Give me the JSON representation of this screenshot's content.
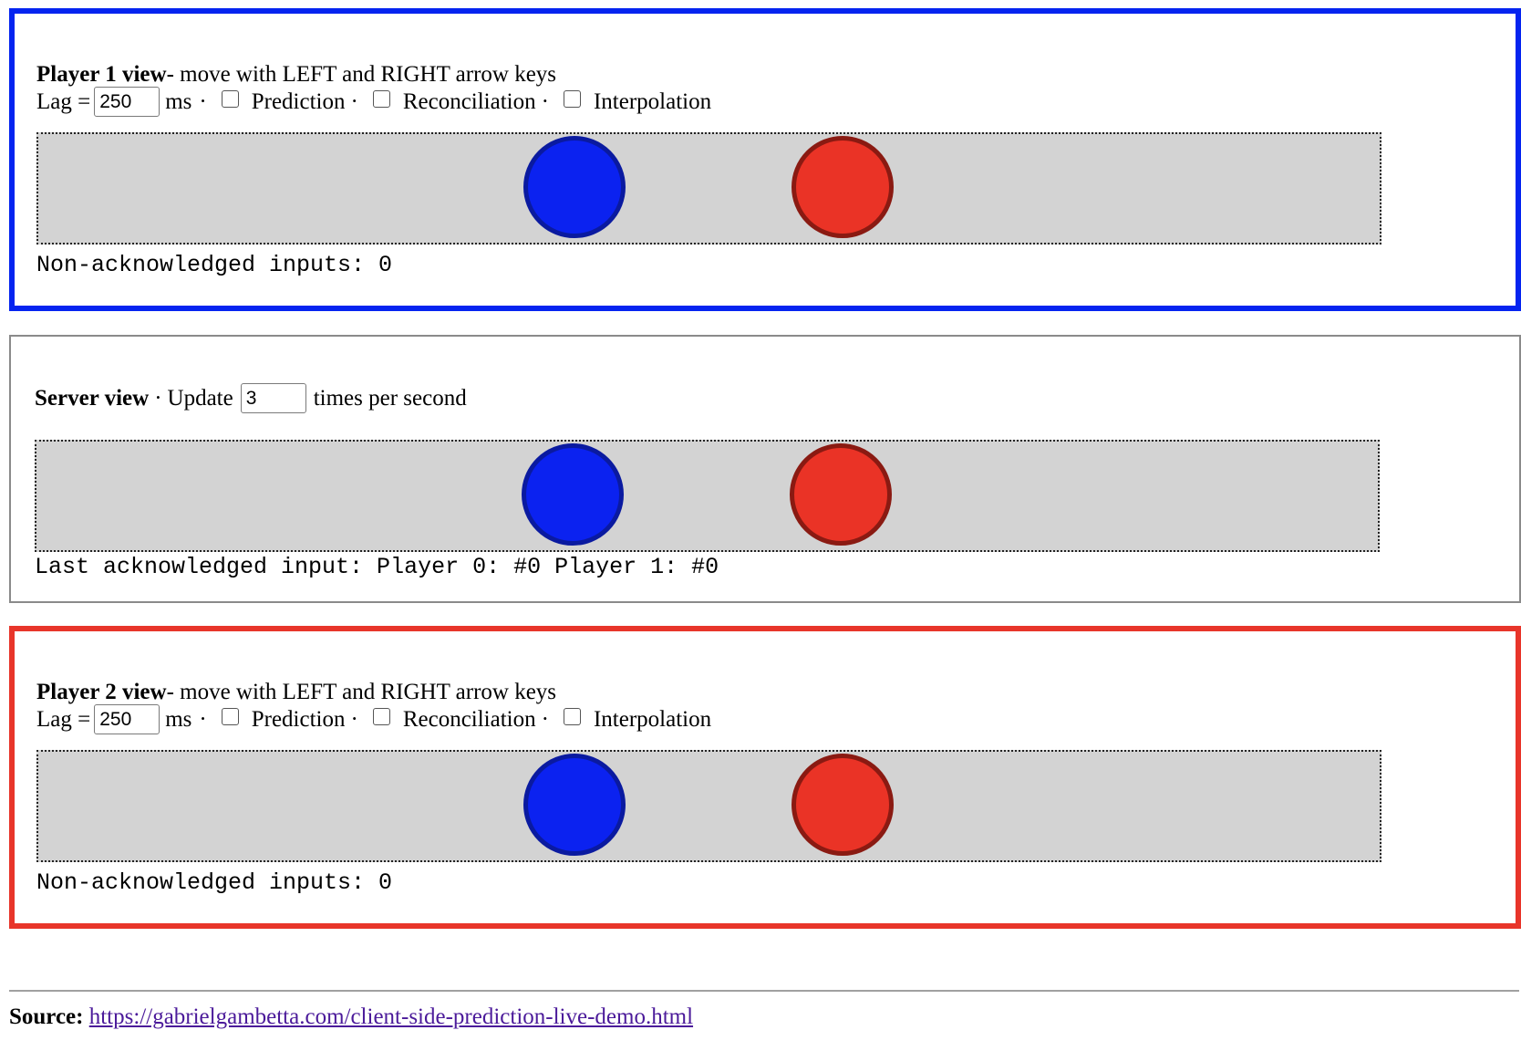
{
  "player1": {
    "title": "Player 1 view",
    "subtitle": " - move with LEFT and RIGHT arrow keys",
    "lag_label": "Lag =",
    "lag_value": "250",
    "ms_label": "ms",
    "sep": "·",
    "prediction_label": "Prediction",
    "reconciliation_label": "Reconciliation",
    "interpolation_label": "Interpolation",
    "prediction_checked": false,
    "reconciliation_checked": false,
    "interpolation_checked": false,
    "status": "Non-acknowledged inputs: 0",
    "accent_color": "#0524f0"
  },
  "server": {
    "title": "Server view",
    "sep": "·",
    "update_label": "Update",
    "update_value": "3",
    "rate_suffix": "times per second",
    "status": "Last acknowledged input: Player 0: #0 Player 1: #0",
    "border_color": "#8a8a8a"
  },
  "player2": {
    "title": "Player 2 view",
    "subtitle": " - move with LEFT and RIGHT arrow keys",
    "lag_label": "Lag =",
    "lag_value": "250",
    "ms_label": "ms",
    "sep": "·",
    "prediction_label": "Prediction",
    "reconciliation_label": "Reconciliation",
    "interpolation_label": "Interpolation",
    "prediction_checked": false,
    "reconciliation_checked": false,
    "interpolation_checked": false,
    "status": "Non-acknowledged inputs: 0",
    "accent_color": "#e8352a"
  },
  "entities": {
    "blue_color": "#0b22f0",
    "red_color": "#ea3326"
  },
  "footer": {
    "source_label": "Source:",
    "source_link": "https://gabrielgambetta.com/client-side-prediction-live-demo.html"
  }
}
